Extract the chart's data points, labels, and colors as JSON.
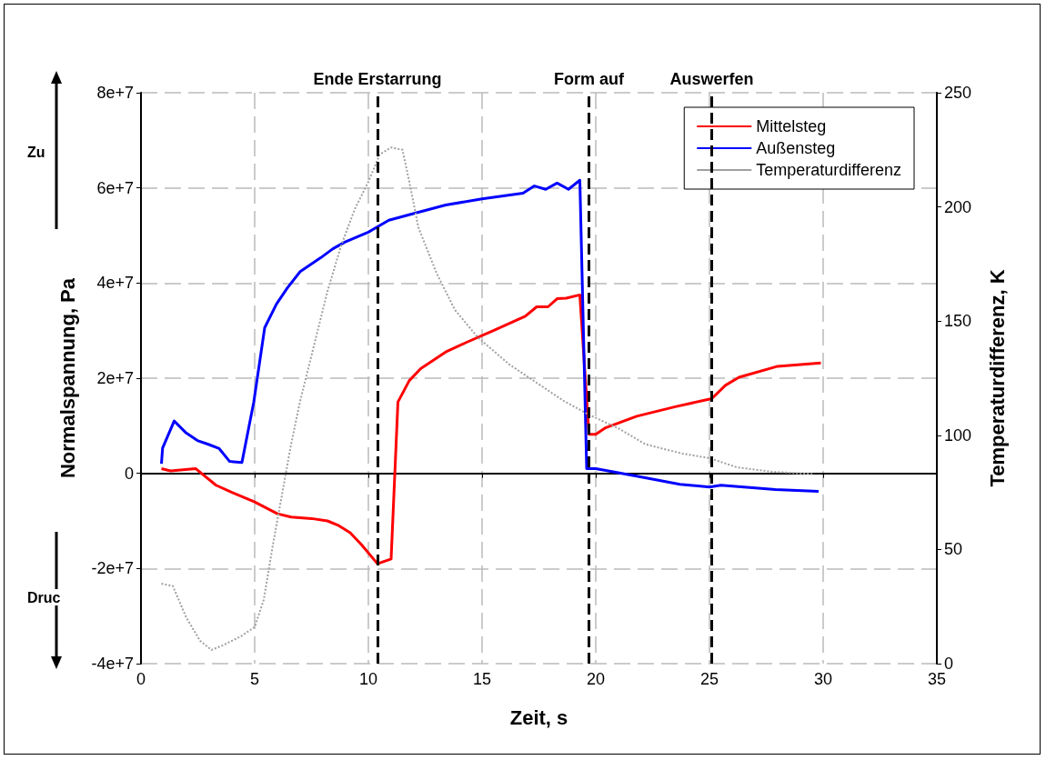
{
  "chart_data": {
    "type": "line",
    "xlabel": "Zeit, s",
    "ylabel": "Normalspannung, Pa",
    "y2label": "Temperaturdifferenz, K",
    "xlim": [
      0,
      35
    ],
    "xticks": [
      0,
      5,
      10,
      15,
      20,
      25,
      30,
      35
    ],
    "ylim": [
      -40000000,
      80000000
    ],
    "yticks": [
      {
        "value": -40000000,
        "label": "-4e+7"
      },
      {
        "value": -20000000,
        "label": "-2e+7"
      },
      0,
      {
        "value": 20000000,
        "label": "2e+7"
      },
      {
        "value": 40000000,
        "label": "4e+7"
      },
      {
        "value": 60000000,
        "label": "6e+7"
      },
      {
        "value": 80000000,
        "label": "8e+7"
      }
    ],
    "y2lim": [
      0,
      250
    ],
    "y2ticks": [
      0,
      50,
      100,
      150,
      200,
      250
    ],
    "grid": true,
    "legend": "top right",
    "marker": "none",
    "annotations": [
      "Zu",
      "Druc"
    ],
    "ref_lines": [
      {
        "axis": "x",
        "value": 10.4,
        "label": "Ende Erstarrung",
        "color": "#000000",
        "line_style": "dashed"
      },
      {
        "axis": "x",
        "value": 19.7,
        "label": "Form auf",
        "color": "#000000",
        "line_style": "dashed"
      },
      {
        "axis": "x",
        "value": 25.1,
        "label": "Auswerfen",
        "color": "#000000",
        "line_style": "dashed"
      }
    ],
    "series": [
      {
        "name": "Mittelsteg",
        "color": "#ff0000",
        "line_style": "solid",
        "x": [
          0.9,
          1.3,
          2.4,
          3.3,
          4,
          5,
          6,
          6.6,
          7.5,
          8.2,
          8.7,
          9.2,
          9.7,
          10.4,
          11,
          11.3,
          11.8,
          12.3,
          13.4,
          14.3,
          15.5,
          16.9,
          17.4,
          17.9,
          18.3,
          18.7,
          19.3,
          19.7,
          20,
          20.4,
          21.8,
          23.5,
          25.1,
          25.7,
          26.3,
          28,
          29.9
        ],
        "values": [
          1000000,
          500000,
          1000000,
          -2500000,
          -4000000,
          -6000000,
          -8500000,
          -9200000,
          -9500000,
          -10000000,
          -11000000,
          -12500000,
          -15000000,
          -19000000,
          -18000000,
          15000000,
          19500000,
          22000000,
          25500000,
          27500000,
          30000000,
          33000000,
          35000000,
          35000000,
          36700000,
          36800000,
          37500000,
          8200000,
          8200000,
          9500000,
          12000000,
          14000000,
          15700000,
          18500000,
          20200000,
          22500000,
          23200000
        ]
      },
      {
        "name": "Außensteg",
        "color": "#0000ff",
        "line_style": "solid",
        "x": [
          0.9,
          0.95,
          1.46,
          1.96,
          2.48,
          2.96,
          3.44,
          3.9,
          4.44,
          4.96,
          5.44,
          5.96,
          6.44,
          7,
          7.9,
          8.44,
          8.96,
          10,
          10.9,
          11.9,
          13.4,
          15,
          16.8,
          17.3,
          17.8,
          18.3,
          18.8,
          19.3,
          19.6,
          20,
          21.8,
          23.7,
          25,
          25.5,
          27.9,
          29.8
        ],
        "values": [
          2000000,
          5300000,
          11000000,
          8600000,
          6900000,
          6100000,
          5200000,
          2500000,
          2300000,
          15000000,
          30600000,
          35600000,
          39000000,
          42400000,
          45300000,
          47200000,
          48600000,
          50700000,
          53200000,
          54500000,
          56400000,
          57700000,
          58900000,
          60400000,
          59700000,
          61000000,
          59700000,
          61600000,
          1000000,
          1000000,
          -600000,
          -2300000,
          -2900000,
          -2500000,
          -3400000,
          -3800000
        ]
      },
      {
        "name": "Temperaturdifferenz",
        "color": "#a0a0a0",
        "line_style": "dotted",
        "axis": "y2",
        "x": [
          0.9,
          1.4,
          2,
          2.6,
          3.1,
          3.6,
          4.4,
          5,
          5.4,
          5.8,
          6.2,
          6.6,
          7,
          7.6,
          8.2,
          8.8,
          9.4,
          10,
          10.5,
          11,
          11.5,
          11.8,
          12.2,
          13,
          13.8,
          14.8,
          16.2,
          17.4,
          18.6,
          19.7,
          21,
          22.2,
          23.8,
          25,
          26.2,
          27.8,
          29.6
        ],
        "values": [
          35,
          34,
          20,
          10,
          6,
          8,
          12,
          16,
          28,
          52,
          74,
          96,
          115,
          139,
          163,
          183,
          199,
          211,
          223,
          226,
          225,
          211,
          191,
          171,
          155,
          143,
          131,
          123,
          115,
          109,
          103,
          96,
          92,
          90,
          86,
          84,
          83
        ]
      }
    ]
  }
}
